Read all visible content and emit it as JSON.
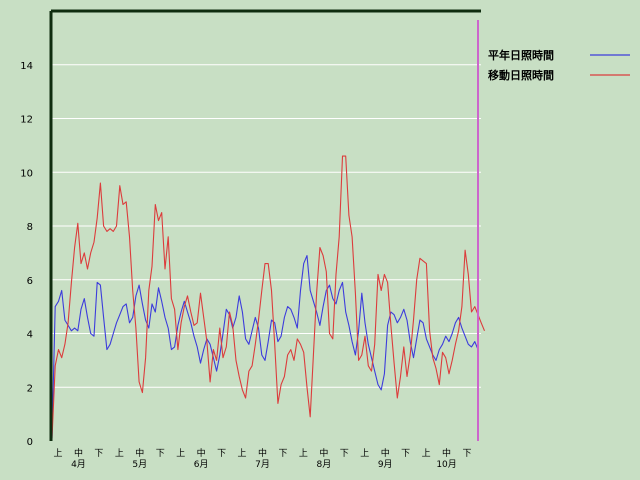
{
  "chart_data": {
    "type": "line",
    "title": "",
    "xlabel": "",
    "ylabel": "",
    "ylim": [
      0,
      16
    ],
    "yticks": [
      0,
      2,
      4,
      6,
      8,
      10,
      12,
      14
    ],
    "grid": true,
    "legend_position": "top-right",
    "colors": {
      "background": "#c8dfc4",
      "grid": "#ffffff",
      "axis": "#0f2c0f",
      "marker_line": "#cc66cc"
    },
    "x_period_labels": [
      "上",
      "中",
      "下",
      "上",
      "中",
      "下",
      "上",
      "中",
      "下",
      "上",
      "中",
      "下",
      "上",
      "中",
      "下",
      "上",
      "中",
      "下",
      "上",
      "中",
      "下"
    ],
    "months": [
      "4月",
      "5月",
      "6月",
      "7月",
      "8月",
      "9月",
      "10月"
    ],
    "series": [
      {
        "name": "平年日照時間",
        "color": "#3c3cdc",
        "values": [
          0.1,
          5.0,
          5.2,
          5.6,
          4.5,
          4.3,
          4.1,
          4.2,
          4.1,
          4.9,
          5.3,
          4.6,
          4.0,
          3.9,
          5.9,
          5.8,
          4.6,
          3.4,
          3.6,
          4.0,
          4.4,
          4.7,
          5.0,
          5.1,
          4.4,
          4.6,
          5.4,
          5.8,
          5.1,
          4.5,
          4.2,
          5.1,
          4.8,
          5.7,
          5.2,
          4.6,
          4.2,
          3.4,
          3.5,
          4.3,
          4.8,
          5.2,
          4.8,
          4.4,
          3.9,
          3.5,
          2.9,
          3.4,
          3.8,
          3.6,
          3.1,
          2.6,
          3.2,
          4.0,
          4.9,
          4.7,
          4.2,
          4.6,
          5.4,
          4.8,
          3.8,
          3.6,
          4.1,
          4.6,
          4.2,
          3.2,
          3.0,
          3.7,
          4.5,
          4.4,
          3.7,
          3.9,
          4.6,
          5.0,
          4.9,
          4.6,
          4.2,
          5.6,
          6.6,
          6.9,
          5.6,
          5.2,
          4.8,
          4.3,
          5.0,
          5.6,
          5.8,
          5.3,
          5.1,
          5.6,
          5.9,
          4.8,
          4.3,
          3.7,
          3.2,
          4.1,
          5.5,
          4.4,
          3.6,
          3.1,
          2.6,
          2.1,
          1.9,
          2.5,
          4.3,
          4.8,
          4.7,
          4.4,
          4.6,
          4.9,
          4.5,
          3.7,
          3.1,
          3.8,
          4.5,
          4.4,
          3.8,
          3.5,
          3.2,
          3.0,
          3.4,
          3.6,
          3.9,
          3.7,
          4.0,
          4.4,
          4.6,
          4.2,
          3.9,
          3.6,
          3.5,
          3.7,
          3.4
        ]
      },
      {
        "name": "移動日照時間",
        "color": "#dc3c3c",
        "values": [
          0.1,
          2.8,
          3.4,
          3.1,
          3.6,
          4.4,
          5.9,
          7.2,
          8.1,
          6.6,
          7.0,
          6.4,
          7.0,
          7.4,
          8.3,
          9.6,
          8.0,
          7.8,
          7.9,
          7.8,
          8.0,
          9.5,
          8.8,
          8.9,
          7.6,
          5.6,
          4.2,
          2.2,
          1.8,
          3.1,
          5.6,
          6.5,
          8.8,
          8.2,
          8.5,
          6.4,
          7.6,
          5.3,
          4.9,
          3.4,
          4.4,
          5.0,
          5.4,
          4.8,
          4.3,
          4.4,
          5.5,
          4.6,
          3.7,
          2.2,
          3.4,
          3.0,
          4.2,
          3.1,
          3.5,
          4.8,
          4.3,
          3.0,
          2.4,
          1.9,
          1.6,
          2.6,
          2.8,
          3.6,
          4.5,
          5.6,
          6.6,
          6.6,
          5.6,
          3.6,
          1.4,
          2.1,
          2.4,
          3.2,
          3.4,
          3.0,
          3.8,
          3.6,
          3.3,
          2.0,
          0.9,
          3.2,
          5.5,
          7.2,
          6.9,
          6.3,
          4.0,
          3.8,
          6.2,
          7.6,
          10.6,
          10.6,
          8.4,
          7.6,
          5.5,
          3.0,
          3.2,
          3.9,
          2.8,
          2.6,
          3.6,
          6.2,
          5.6,
          6.2,
          5.9,
          4.3,
          2.9,
          1.6,
          2.4,
          3.5,
          2.4,
          3.2,
          4.5,
          6.0,
          6.8,
          6.7,
          6.6,
          4.1,
          3.1,
          2.7,
          2.1,
          3.3,
          3.1,
          2.5,
          3.0,
          3.6,
          4.1,
          5.0,
          7.1,
          6.2,
          4.8,
          5.0,
          4.7,
          4.4,
          4.1
        ]
      }
    ]
  }
}
